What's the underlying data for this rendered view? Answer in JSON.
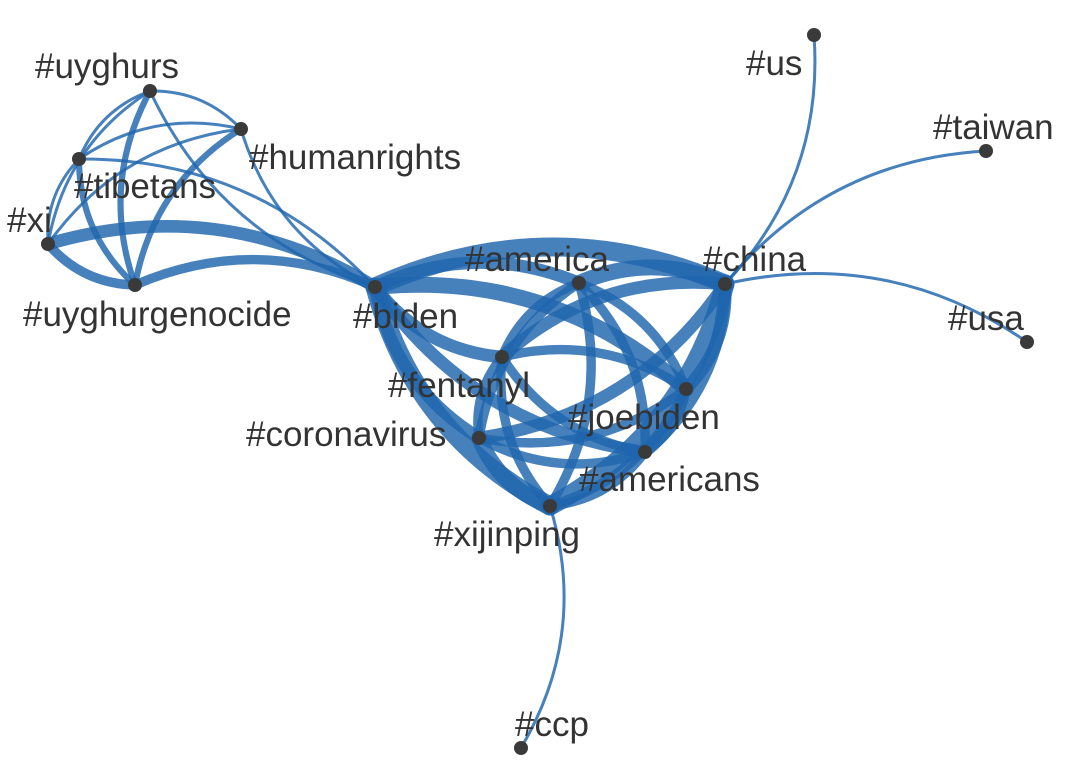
{
  "colors": {
    "edge": "#1f65ad",
    "node": "#3a3a3a",
    "label": "#333333",
    "background": "#ffffff"
  },
  "nodes": [
    {
      "id": "uyghurs",
      "label": "#uyghurs"
    },
    {
      "id": "humanrights",
      "label": "#humanrights"
    },
    {
      "id": "tibetans",
      "label": "#tibetans"
    },
    {
      "id": "xi",
      "label": "#xi"
    },
    {
      "id": "uyghurgenocide",
      "label": "#uyghurgenocide"
    },
    {
      "id": "biden",
      "label": "#biden"
    },
    {
      "id": "america",
      "label": "#america"
    },
    {
      "id": "china",
      "label": "#china"
    },
    {
      "id": "us",
      "label": "#us"
    },
    {
      "id": "taiwan",
      "label": "#taiwan"
    },
    {
      "id": "usa",
      "label": "#usa"
    },
    {
      "id": "fentanyl",
      "label": "#fentanyl"
    },
    {
      "id": "joebiden",
      "label": "#joebiden"
    },
    {
      "id": "coronavirus",
      "label": "#coronavirus"
    },
    {
      "id": "americans",
      "label": "#americans"
    },
    {
      "id": "xijinping",
      "label": "#xijinping"
    },
    {
      "id": "ccp",
      "label": "#ccp"
    }
  ],
  "edges": [
    {
      "source": "uyghurs",
      "target": "humanrights",
      "weight": 1
    },
    {
      "source": "uyghurs",
      "target": "tibetans",
      "weight": 1
    },
    {
      "source": "uyghurs",
      "target": "xi",
      "weight": 1
    },
    {
      "source": "uyghurs",
      "target": "uyghurgenocide",
      "weight": 2
    },
    {
      "source": "uyghurs",
      "target": "biden",
      "weight": 1
    },
    {
      "source": "humanrights",
      "target": "tibetans",
      "weight": 1
    },
    {
      "source": "humanrights",
      "target": "xi",
      "weight": 1
    },
    {
      "source": "humanrights",
      "target": "uyghurgenocide",
      "weight": 2
    },
    {
      "source": "humanrights",
      "target": "biden",
      "weight": 1
    },
    {
      "source": "tibetans",
      "target": "xi",
      "weight": 1
    },
    {
      "source": "tibetans",
      "target": "uyghurgenocide",
      "weight": 2
    },
    {
      "source": "tibetans",
      "target": "biden",
      "weight": 1
    },
    {
      "source": "xi",
      "target": "uyghurgenocide",
      "weight": 3
    },
    {
      "source": "xi",
      "target": "biden",
      "weight": 4
    },
    {
      "source": "uyghurgenocide",
      "target": "biden",
      "weight": 3
    },
    {
      "source": "biden",
      "target": "america",
      "weight": 4
    },
    {
      "source": "biden",
      "target": "china",
      "weight": 6
    },
    {
      "source": "biden",
      "target": "fentanyl",
      "weight": 4
    },
    {
      "source": "biden",
      "target": "joebiden",
      "weight": 5
    },
    {
      "source": "biden",
      "target": "coronavirus",
      "weight": 4
    },
    {
      "source": "biden",
      "target": "americans",
      "weight": 4
    },
    {
      "source": "biden",
      "target": "xijinping",
      "weight": 6
    },
    {
      "source": "america",
      "target": "china",
      "weight": 5
    },
    {
      "source": "america",
      "target": "fentanyl",
      "weight": 3
    },
    {
      "source": "america",
      "target": "joebiden",
      "weight": 3
    },
    {
      "source": "america",
      "target": "coronavirus",
      "weight": 3
    },
    {
      "source": "america",
      "target": "americans",
      "weight": 3
    },
    {
      "source": "america",
      "target": "xijinping",
      "weight": 3
    },
    {
      "source": "china",
      "target": "fentanyl",
      "weight": 4
    },
    {
      "source": "china",
      "target": "joebiden",
      "weight": 4
    },
    {
      "source": "china",
      "target": "coronavirus",
      "weight": 4
    },
    {
      "source": "china",
      "target": "americans",
      "weight": 4
    },
    {
      "source": "china",
      "target": "xijinping",
      "weight": 6
    },
    {
      "source": "china",
      "target": "us",
      "weight": 1
    },
    {
      "source": "china",
      "target": "taiwan",
      "weight": 1
    },
    {
      "source": "china",
      "target": "usa",
      "weight": 1
    },
    {
      "source": "fentanyl",
      "target": "joebiden",
      "weight": 3
    },
    {
      "source": "fentanyl",
      "target": "coronavirus",
      "weight": 3
    },
    {
      "source": "fentanyl",
      "target": "americans",
      "weight": 3
    },
    {
      "source": "fentanyl",
      "target": "xijinping",
      "weight": 3
    },
    {
      "source": "joebiden",
      "target": "coronavirus",
      "weight": 3
    },
    {
      "source": "joebiden",
      "target": "americans",
      "weight": 3
    },
    {
      "source": "joebiden",
      "target": "xijinping",
      "weight": 3
    },
    {
      "source": "coronavirus",
      "target": "americans",
      "weight": 3
    },
    {
      "source": "coronavirus",
      "target": "xijinping",
      "weight": 5
    },
    {
      "source": "americans",
      "target": "xijinping",
      "weight": 3
    },
    {
      "source": "xijinping",
      "target": "ccp",
      "weight": 1
    }
  ]
}
